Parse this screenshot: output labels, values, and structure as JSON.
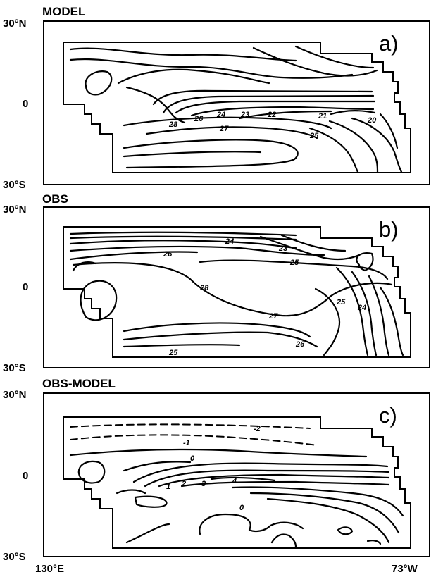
{
  "panels": [
    {
      "id": "a",
      "title": "MODEL",
      "label": "a)",
      "y_top": "30°N",
      "y_mid": "0",
      "y_bottom": "30°S",
      "contour_labels": [
        "28",
        "26",
        "24",
        "23",
        "22",
        "21",
        "20",
        "27",
        "25"
      ]
    },
    {
      "id": "b",
      "title": "OBS",
      "label": "b)",
      "y_top": "30°N",
      "y_mid": "0",
      "y_bottom": "30°S",
      "contour_labels": [
        "24",
        "26",
        "23",
        "25",
        "28",
        "27",
        "25",
        "24",
        "26",
        "25"
      ]
    },
    {
      "id": "c",
      "title": "OBS-MODEL",
      "label": "c)",
      "y_top": "30°N",
      "y_mid": "0",
      "y_bottom": "30°S",
      "contour_labels": [
        "-2",
        "-1",
        "0",
        "1",
        "2",
        "3",
        "4",
        "0"
      ]
    }
  ],
  "x_axis": {
    "left": "130°E",
    "right": "73°W"
  }
}
